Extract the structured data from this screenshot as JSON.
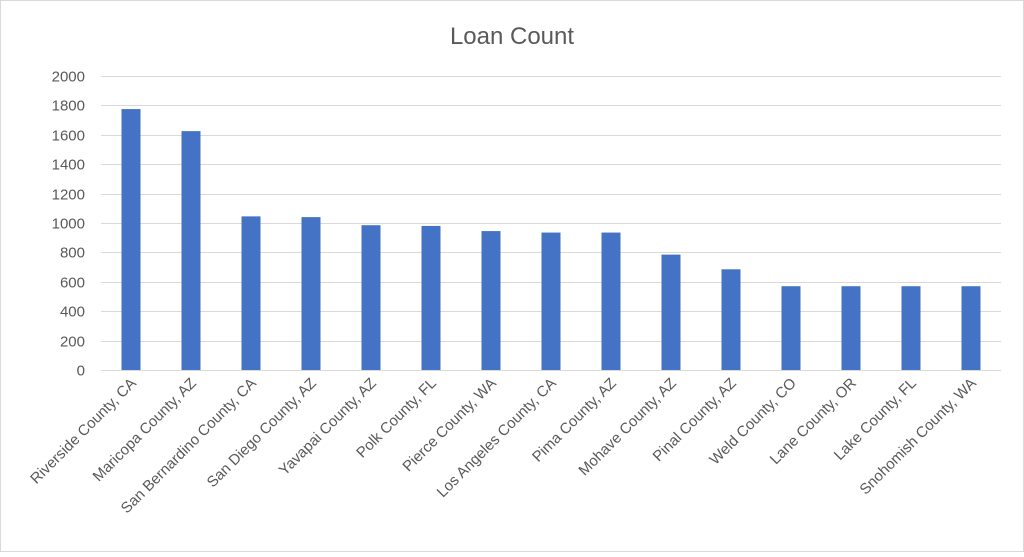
{
  "chart_data": {
    "type": "bar",
    "title": "Loan Count",
    "xlabel": "",
    "ylabel": "",
    "categories": [
      "Riverside County, CA",
      "Maricopa County, AZ",
      "San Bernardino County, CA",
      "San Diego County, AZ",
      "Yavapai County, AZ",
      "Polk County, FL",
      "Pierce County, WA",
      "Los Angeles County, CA",
      "Pima County, AZ",
      "Mohave County, AZ",
      "Pinal County, AZ",
      "Weld County, CO",
      "Lane County, OR",
      "Lake County, FL",
      "Snohomish County, WA"
    ],
    "values": [
      1775,
      1625,
      1045,
      1040,
      985,
      980,
      945,
      935,
      935,
      785,
      685,
      570,
      570,
      570,
      570
    ],
    "ylim": [
      0,
      2000
    ],
    "yticks": [
      0,
      200,
      400,
      600,
      800,
      1000,
      1200,
      1400,
      1600,
      1800,
      2000
    ],
    "grid": true,
    "legend": "none",
    "bar_color": "#4472c4",
    "border_color": "#d9d9d9"
  }
}
